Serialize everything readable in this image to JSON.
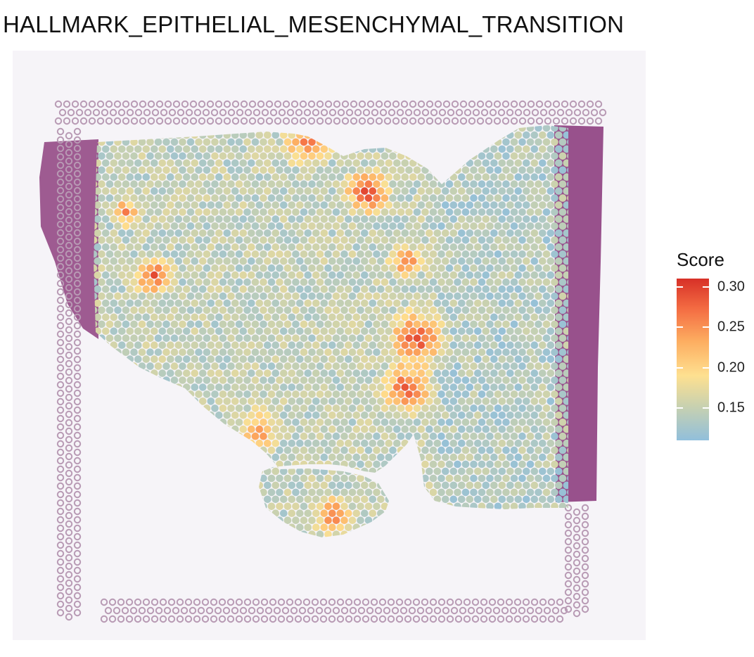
{
  "title": "HALLMARK_EPITHELIAL_MESENCHYMAL_TRANSITION",
  "legend": {
    "title": "Score",
    "ticks": [
      {
        "label": "0.30",
        "value": 0.3
      },
      {
        "label": "0.25",
        "value": 0.25
      },
      {
        "label": "0.20",
        "value": 0.2
      },
      {
        "label": "0.15",
        "value": 0.15
      }
    ],
    "range": [
      0.11,
      0.31
    ],
    "palette": [
      "#91bfdb",
      "#c8d1b0",
      "#fee090",
      "#fdae61",
      "#f46d43",
      "#d73027"
    ]
  },
  "colors": {
    "tissue_stain": "#8e3f7f",
    "background_spot": "#b89ab4",
    "low": "#91bfdb",
    "high": "#d73027"
  }
}
